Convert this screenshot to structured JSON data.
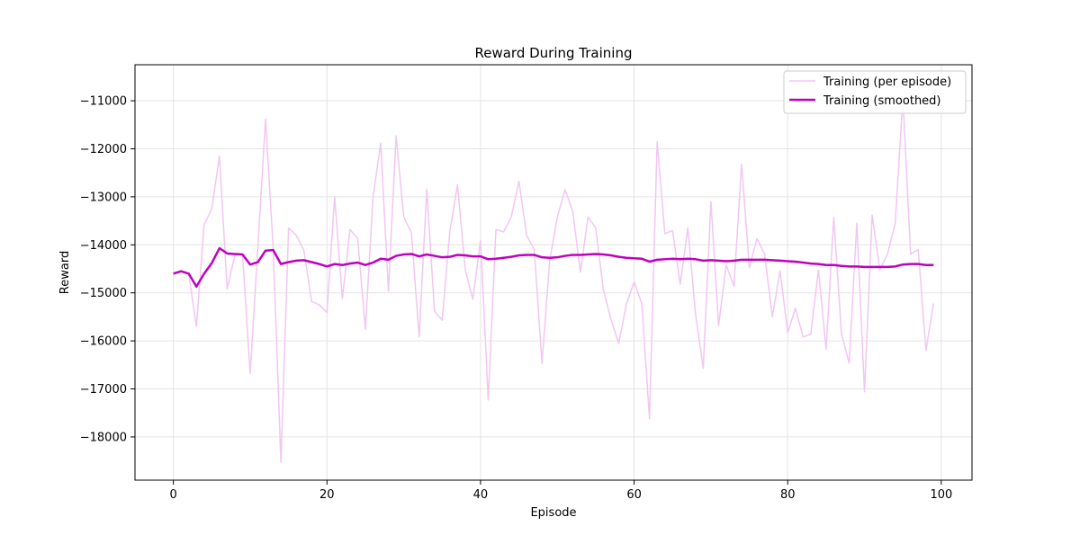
{
  "chart_data": {
    "type": "line",
    "title": "Reward During Training",
    "xlabel": "Episode",
    "ylabel": "Reward",
    "xlim": [
      -5,
      104
    ],
    "ylim": [
      -18900,
      -10250
    ],
    "xticks": [
      0,
      20,
      40,
      60,
      80,
      100
    ],
    "yticks": [
      -18000,
      -17000,
      -16000,
      -15000,
      -14000,
      -13000,
      -12000,
      -11000
    ],
    "grid": true,
    "legend_position": "top-right",
    "series": [
      {
        "name": "Training (per episode)",
        "color": "#f2c6f2",
        "x": [
          0,
          1,
          2,
          3,
          4,
          5,
          6,
          7,
          8,
          9,
          10,
          11,
          12,
          13,
          14,
          15,
          16,
          17,
          18,
          19,
          20,
          21,
          22,
          23,
          24,
          25,
          26,
          27,
          28,
          29,
          30,
          31,
          32,
          33,
          34,
          35,
          36,
          37,
          38,
          39,
          40,
          41,
          42,
          43,
          44,
          45,
          46,
          47,
          48,
          49,
          50,
          51,
          52,
          53,
          54,
          55,
          56,
          57,
          58,
          59,
          60,
          61,
          62,
          63,
          64,
          65,
          66,
          67,
          68,
          69,
          70,
          71,
          72,
          73,
          74,
          75,
          76,
          77,
          78,
          79,
          80,
          81,
          82,
          83,
          84,
          85,
          86,
          87,
          88,
          89,
          90,
          91,
          92,
          93,
          94,
          95,
          96,
          97,
          98,
          99
        ],
        "values": [
          -14600,
          -14550,
          -14600,
          -15700,
          -13580,
          -13250,
          -12150,
          -14920,
          -14220,
          -14200,
          -16680,
          -14050,
          -11380,
          -14080,
          -18530,
          -13650,
          -13800,
          -14120,
          -15180,
          -15250,
          -15410,
          -13000,
          -15120,
          -13680,
          -13870,
          -15760,
          -13000,
          -11880,
          -14960,
          -11730,
          -13420,
          -13750,
          -15920,
          -12840,
          -15380,
          -15570,
          -13720,
          -12750,
          -14520,
          -15130,
          -13900,
          -17230,
          -13680,
          -13730,
          -13420,
          -12680,
          -13800,
          -14100,
          -16470,
          -14340,
          -13420,
          -12850,
          -13300,
          -14570,
          -13420,
          -13650,
          -14940,
          -15560,
          -16050,
          -15230,
          -14770,
          -15230,
          -17620,
          -11850,
          -13770,
          -13700,
          -14820,
          -13650,
          -15450,
          -16570,
          -13100,
          -15680,
          -14420,
          -14860,
          -12320,
          -14470,
          -13870,
          -14200,
          -15500,
          -14540,
          -15830,
          -15320,
          -15920,
          -15860,
          -14530,
          -16170,
          -13430,
          -15850,
          -16460,
          -13550,
          -17060,
          -13380,
          -14530,
          -14190,
          -13560,
          -10930,
          -14190,
          -14100,
          -16200,
          -15220
        ]
      },
      {
        "name": "Training (smoothed)",
        "color": "#bf00bf",
        "x": [
          0,
          1,
          2,
          3,
          4,
          5,
          6,
          7,
          8,
          9,
          10,
          11,
          12,
          13,
          14,
          15,
          16,
          17,
          18,
          19,
          20,
          21,
          22,
          23,
          24,
          25,
          26,
          27,
          28,
          29,
          30,
          31,
          32,
          33,
          34,
          35,
          36,
          37,
          38,
          39,
          40,
          41,
          42,
          43,
          44,
          45,
          46,
          47,
          48,
          49,
          50,
          51,
          52,
          53,
          54,
          55,
          56,
          57,
          58,
          59,
          60,
          61,
          62,
          63,
          64,
          65,
          66,
          67,
          68,
          69,
          70,
          71,
          72,
          73,
          74,
          75,
          76,
          77,
          78,
          79,
          80,
          81,
          82,
          83,
          84,
          85,
          86,
          87,
          88,
          89,
          90,
          91,
          92,
          93,
          94,
          95,
          96,
          97,
          98,
          99
        ],
        "values": [
          -14600,
          -14550,
          -14600,
          -14870,
          -14600,
          -14380,
          -14070,
          -14180,
          -14190,
          -14200,
          -14410,
          -14360,
          -14120,
          -14110,
          -14400,
          -14360,
          -14330,
          -14320,
          -14360,
          -14400,
          -14450,
          -14400,
          -14420,
          -14390,
          -14370,
          -14420,
          -14370,
          -14290,
          -14310,
          -14230,
          -14200,
          -14190,
          -14240,
          -14200,
          -14230,
          -14260,
          -14250,
          -14210,
          -14220,
          -14240,
          -14240,
          -14300,
          -14290,
          -14270,
          -14250,
          -14220,
          -14210,
          -14210,
          -14260,
          -14270,
          -14260,
          -14230,
          -14210,
          -14210,
          -14200,
          -14190,
          -14200,
          -14220,
          -14250,
          -14270,
          -14280,
          -14290,
          -14350,
          -14310,
          -14300,
          -14290,
          -14300,
          -14290,
          -14300,
          -14330,
          -14320,
          -14330,
          -14340,
          -14330,
          -14310,
          -14310,
          -14310,
          -14310,
          -14320,
          -14330,
          -14340,
          -14350,
          -14370,
          -14390,
          -14400,
          -14420,
          -14420,
          -14440,
          -14450,
          -14450,
          -14460,
          -14460,
          -14460,
          -14460,
          -14450,
          -14410,
          -14400,
          -14400,
          -14420,
          -14420
        ]
      }
    ]
  }
}
